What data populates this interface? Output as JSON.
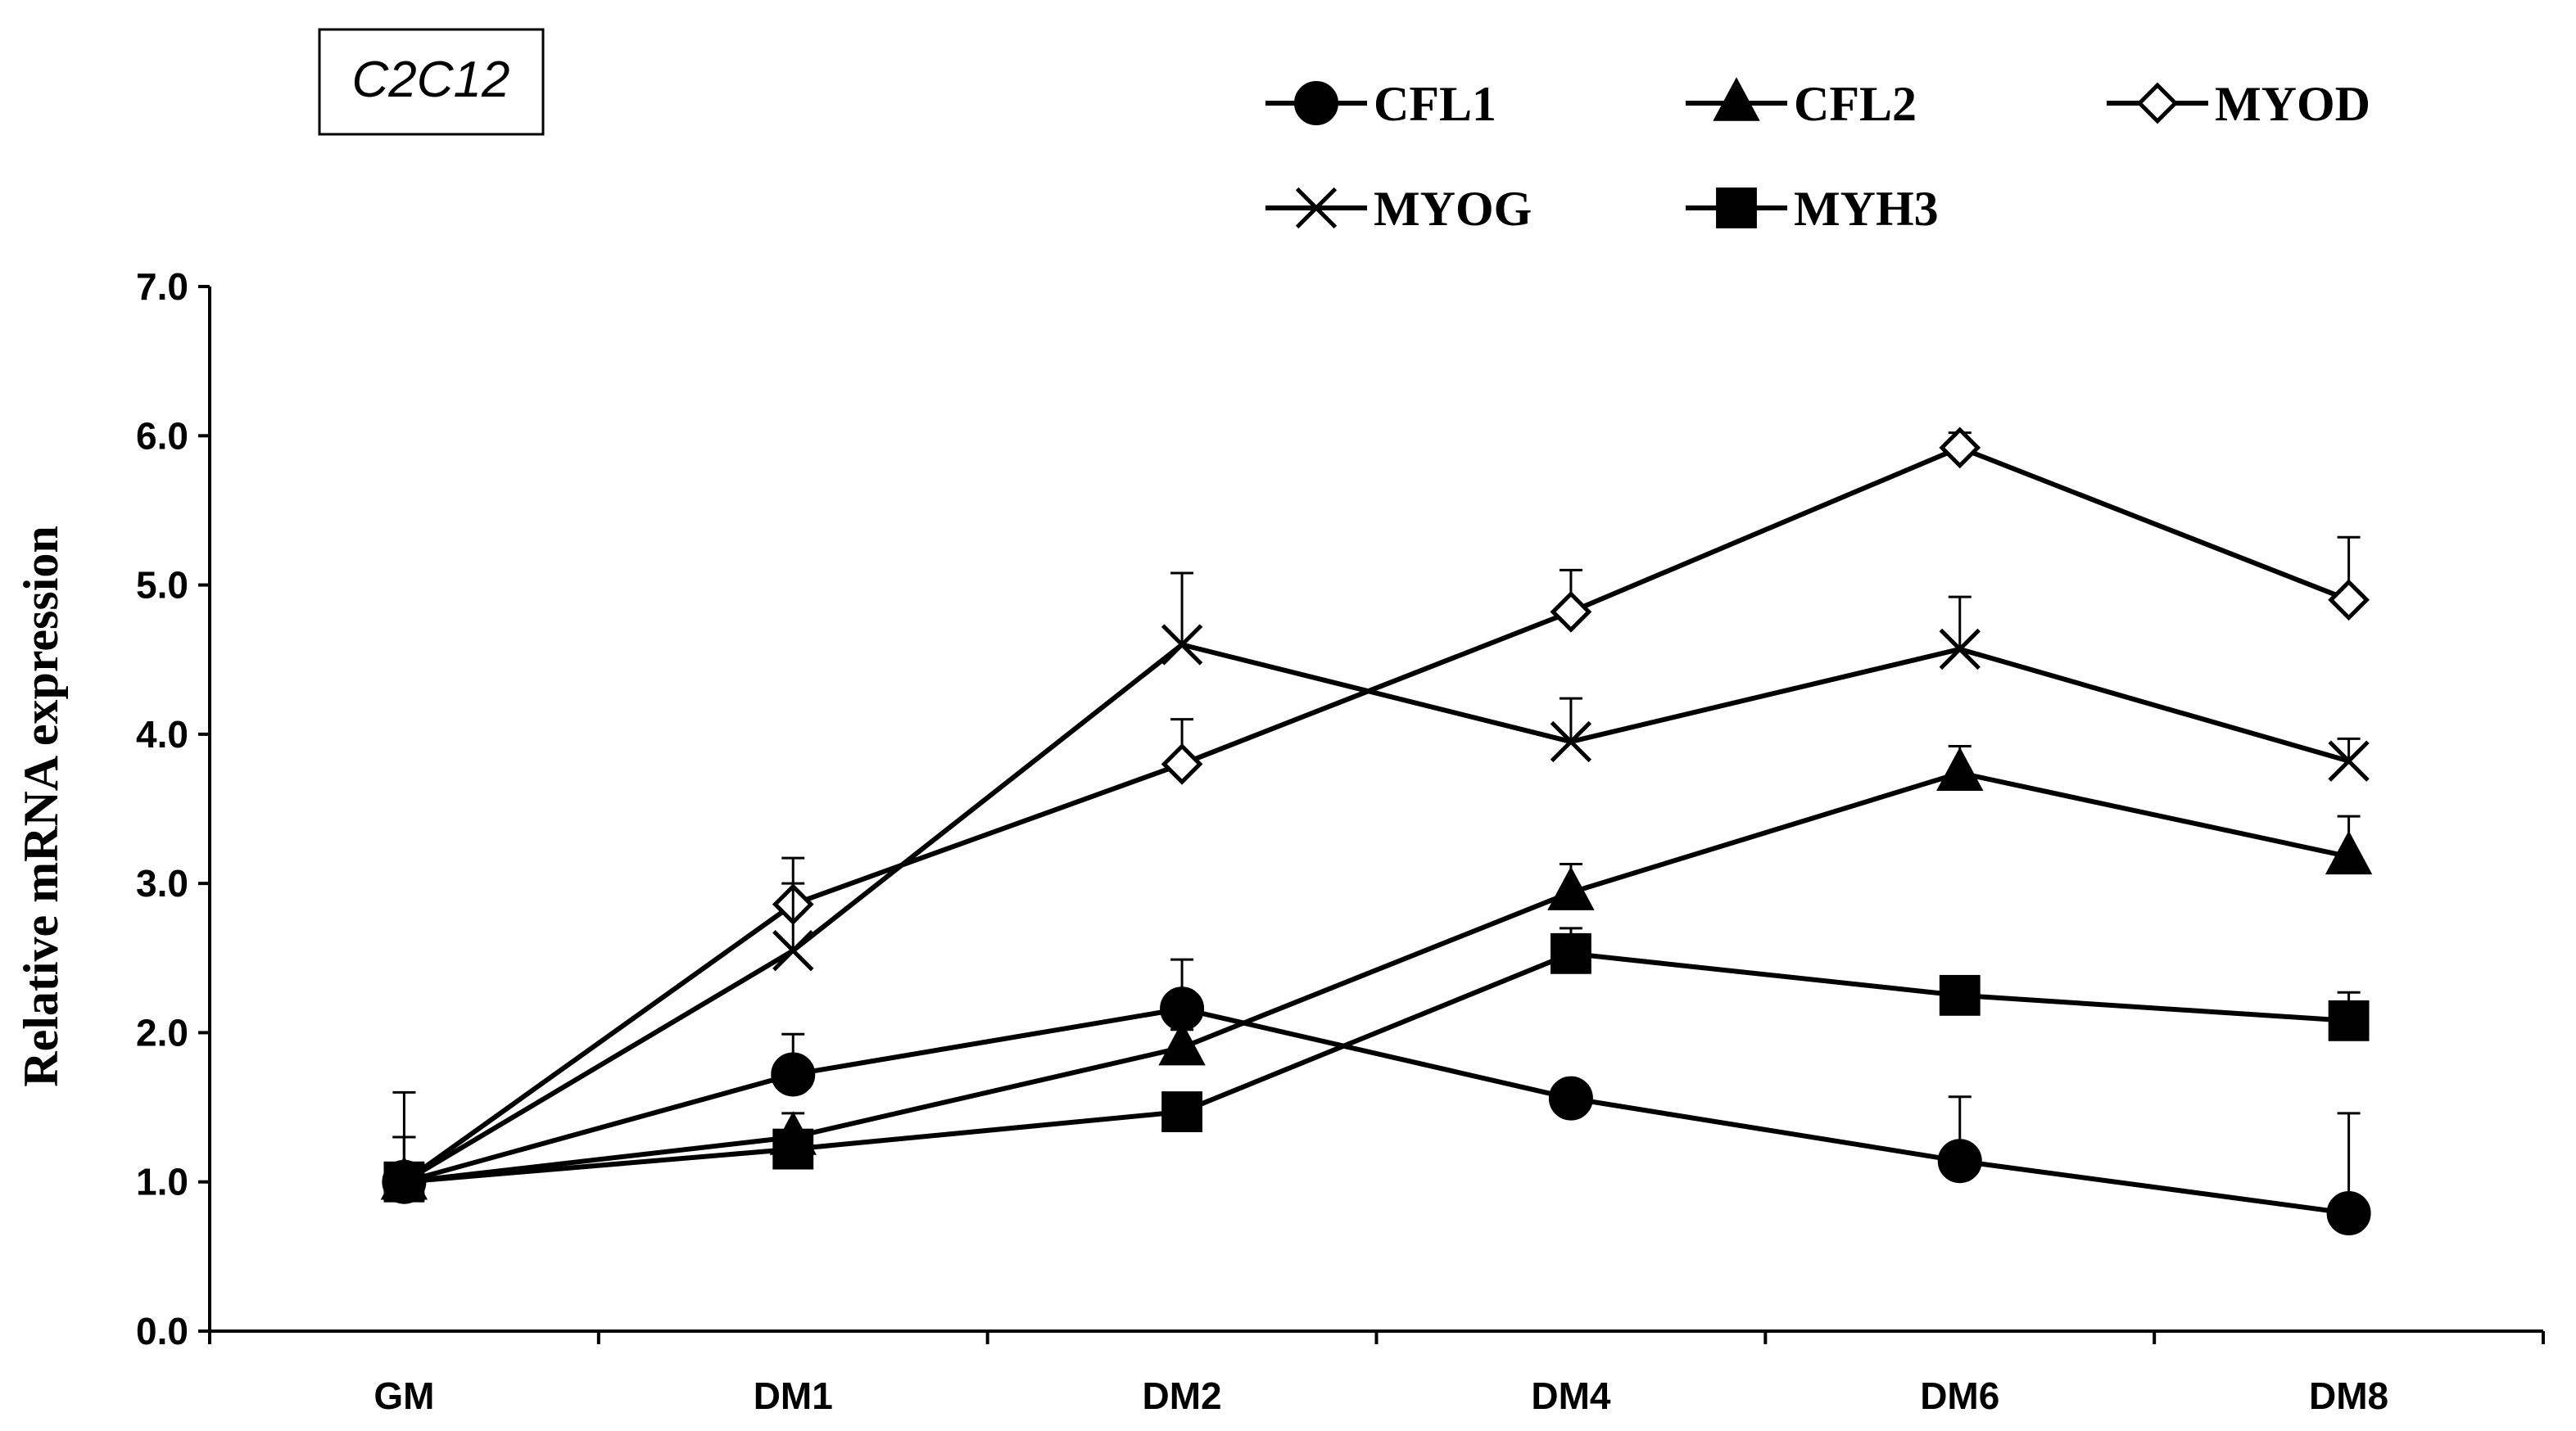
{
  "chart_data": {
    "type": "line",
    "title": "C2C12",
    "xlabel": "",
    "ylabel": "Relative mRNA expression",
    "categories": [
      "GM",
      "DM1",
      "DM2",
      "DM4",
      "DM6",
      "DM8"
    ],
    "ylim": [
      0,
      7
    ],
    "yticks": [
      "0.0",
      "1.0",
      "2.0",
      "3.0",
      "4.0",
      "5.0",
      "6.0",
      "7.0"
    ],
    "ytick_values": [
      0,
      1,
      2,
      3,
      4,
      5,
      6,
      7
    ],
    "legend_position": "top-right",
    "series": [
      {
        "name": "CFL1",
        "marker": "filled-circle",
        "values": [
          1.0,
          1.72,
          2.16,
          1.56,
          1.14,
          0.79
        ],
        "errors": [
          0.3,
          0.27,
          0.33,
          0.03,
          0.43,
          0.67
        ]
      },
      {
        "name": "CFL2",
        "marker": "filled-triangle",
        "values": [
          1.0,
          1.3,
          1.9,
          2.94,
          3.74,
          3.18
        ],
        "errors": [
          0.3,
          0.16,
          0.12,
          0.19,
          0.18,
          0.27
        ]
      },
      {
        "name": "MYOD",
        "marker": "open-diamond",
        "values": [
          1.0,
          2.86,
          3.8,
          4.82,
          5.92,
          4.9
        ],
        "errors": [
          0.3,
          0.31,
          0.3,
          0.28,
          0.1,
          0.42
        ]
      },
      {
        "name": "MYOG",
        "marker": "x",
        "values": [
          1.0,
          2.55,
          4.6,
          3.95,
          4.57,
          3.82
        ],
        "errors": [
          0.6,
          0.45,
          0.48,
          0.29,
          0.35,
          0.15
        ]
      },
      {
        "name": "MYH3",
        "marker": "filled-square",
        "values": [
          1.0,
          1.22,
          1.47,
          2.53,
          2.25,
          2.08
        ],
        "errors": [
          0.3,
          0.05,
          0.05,
          0.17,
          0.05,
          0.19
        ]
      }
    ]
  },
  "colors": {
    "line": "#000000",
    "background": "#ffffff"
  }
}
